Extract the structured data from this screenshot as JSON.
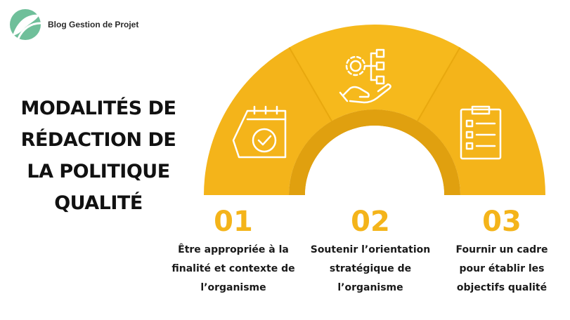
{
  "brand": {
    "name": "Blog Gestion de Projet",
    "logo_icon": "leaf-logo-icon"
  },
  "title": [
    "MODALITÉS DE",
    "RÉDACTION DE",
    "LA POLITIQUE",
    "QUALITÉ"
  ],
  "colors": {
    "accent": "#f4b41a",
    "accent_dark": "#e0a00f",
    "brand_green": "#6fbf9a",
    "text": "#111111"
  },
  "steps": [
    {
      "number": "01",
      "icon": "calendar-check-icon",
      "lines": [
        "Être appropriée à la",
        "finalité et contexte de",
        "l’organisme"
      ]
    },
    {
      "number": "02",
      "icon": "hand-gear-flowchart-icon",
      "lines": [
        "Soutenir l’orientation",
        "stratégique de",
        "l’organisme"
      ]
    },
    {
      "number": "03",
      "icon": "clipboard-checklist-icon",
      "lines": [
        "Fournir un cadre",
        "pour établir les",
        "objectifs qualité"
      ]
    }
  ]
}
